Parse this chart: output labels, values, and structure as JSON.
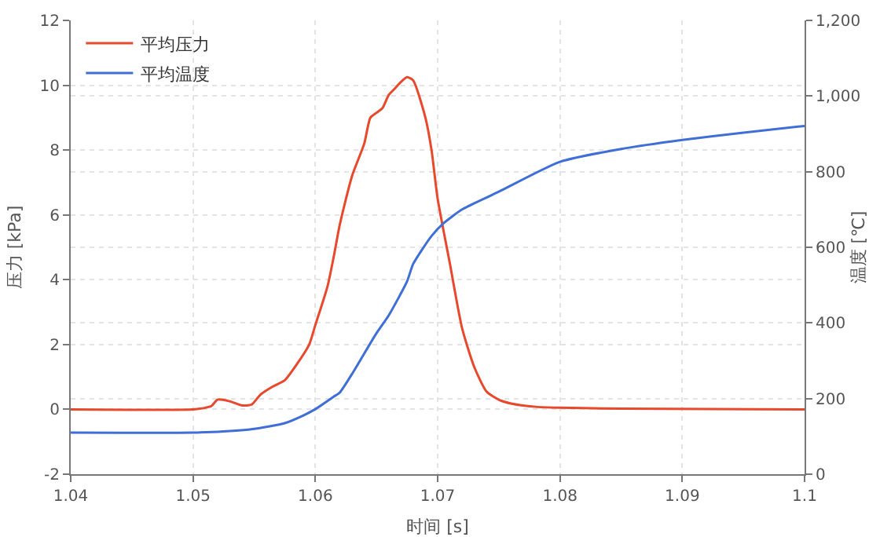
{
  "chart_data": {
    "type": "line",
    "xlabel": "时间 [s]",
    "ylabel": "压力 [kPa]",
    "y2label": "温度 [℃]",
    "xlim": [
      1.04,
      1.1
    ],
    "xticks": [
      {
        "value": 1.04,
        "label": "1.04"
      },
      {
        "value": 1.05,
        "label": "1.05"
      },
      {
        "value": 1.06,
        "label": "1.06"
      },
      {
        "value": 1.07,
        "label": "1.07"
      },
      {
        "value": 1.08,
        "label": "1.08"
      },
      {
        "value": 1.09,
        "label": "1.09"
      },
      {
        "value": 1.1,
        "label": "1.1"
      }
    ],
    "ylim": [
      -2,
      12
    ],
    "yticks": [
      -2,
      0,
      2,
      4,
      6,
      8,
      10,
      12
    ],
    "y2lim": [
      0,
      1200
    ],
    "y2ticks": [
      0,
      200,
      400,
      600,
      800,
      {
        "value": 1000,
        "label": "1,000"
      },
      {
        "value": 1200,
        "label": "1,200"
      }
    ],
    "grid": true,
    "legend": "top left",
    "line_style": "solid",
    "marker": "none",
    "series": [
      {
        "name": "平均压力",
        "color": "#e8482c",
        "x": [
          1.04,
          1.05,
          1.051,
          1.0515,
          1.052,
          1.053,
          1.054,
          1.0548,
          1.0555,
          1.0565,
          1.0575,
          1.0585,
          1.0595,
          1.06,
          1.061,
          1.0615,
          1.062,
          1.063,
          1.064,
          1.0645,
          1.065,
          1.0655,
          1.066,
          1.0665,
          1.067,
          1.0675,
          1.068,
          1.069,
          1.0695,
          1.07,
          1.071,
          1.072,
          1.073,
          1.074,
          1.075,
          1.076,
          1.078,
          1.08,
          1.085,
          1.1
        ],
        "values": [
          0,
          0,
          0.05,
          0.1,
          0.3,
          0.25,
          0.12,
          0.15,
          0.45,
          0.7,
          0.9,
          1.4,
          2.0,
          2.6,
          3.8,
          4.7,
          5.7,
          7.2,
          8.2,
          9.0,
          9.15,
          9.3,
          9.7,
          9.9,
          10.1,
          10.25,
          10.15,
          9.0,
          8.0,
          6.5,
          4.5,
          2.5,
          1.3,
          0.55,
          0.3,
          0.18,
          0.08,
          0.05,
          0.02,
          0
        ]
      },
      {
        "name": "平均温度",
        "color": "#3f6fd6",
        "axis": "y2",
        "x": [
          1.04,
          1.05,
          1.0525,
          1.055,
          1.0575,
          1.059,
          1.06,
          1.0615,
          1.062,
          1.063,
          1.065,
          1.066,
          1.0675,
          1.068,
          1.0695,
          1.0705,
          1.072,
          1.075,
          1.08,
          1.085,
          1.09,
          1.095,
          1.1
        ],
        "values": [
          110,
          110,
          113,
          120,
          135,
          155,
          172,
          205,
          216,
          265,
          373,
          420,
          510,
          556,
          630,
          664,
          700,
          747,
          826,
          860,
          884,
          903,
          921
        ]
      }
    ]
  }
}
